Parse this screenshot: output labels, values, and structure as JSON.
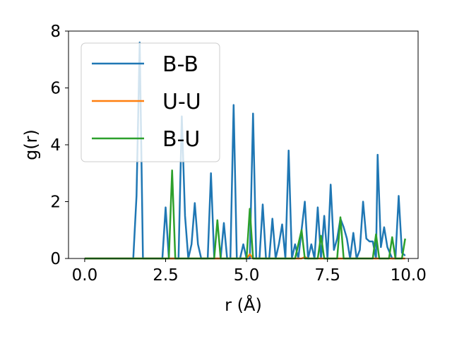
{
  "chart_data": {
    "type": "line",
    "title": "",
    "xlabel": "r (Å)",
    "ylabel": "g(r)",
    "xlim": [
      -0.5,
      10.3
    ],
    "ylim": [
      0,
      8
    ],
    "xticks": [
      0.0,
      2.5,
      5.0,
      7.5,
      10.0
    ],
    "xtick_labels": [
      "0.0",
      "2.5",
      "5.0",
      "7.5",
      "10.0"
    ],
    "yticks": [
      0,
      2,
      4,
      6,
      8
    ],
    "ytick_labels": [
      "0",
      "2",
      "4",
      "6",
      "8"
    ],
    "grid": false,
    "legend_position": "top-left",
    "series": [
      {
        "name": "B-B",
        "color": "#1f77b4",
        "points": [
          [
            0.0,
            0.0
          ],
          [
            1.5,
            0.0
          ],
          [
            1.6,
            2.2
          ],
          [
            1.7,
            7.6
          ],
          [
            1.8,
            0.0
          ],
          [
            2.4,
            0.0
          ],
          [
            2.5,
            1.8
          ],
          [
            2.6,
            0.0
          ],
          [
            2.9,
            0.0
          ],
          [
            3.0,
            5.0
          ],
          [
            3.1,
            1.5
          ],
          [
            3.2,
            0.0
          ],
          [
            3.3,
            0.5
          ],
          [
            3.4,
            1.95
          ],
          [
            3.5,
            0.5
          ],
          [
            3.6,
            0.0
          ],
          [
            3.8,
            0.0
          ],
          [
            3.9,
            3.0
          ],
          [
            4.0,
            0.0
          ],
          [
            4.2,
            0.0
          ],
          [
            4.3,
            1.25
          ],
          [
            4.4,
            0.0
          ],
          [
            4.5,
            0.0
          ],
          [
            4.6,
            5.4
          ],
          [
            4.7,
            0.0
          ],
          [
            4.8,
            0.0
          ],
          [
            4.9,
            0.5
          ],
          [
            5.0,
            0.0
          ],
          [
            5.1,
            0.0
          ],
          [
            5.2,
            5.1
          ],
          [
            5.3,
            0.0
          ],
          [
            5.4,
            0.0
          ],
          [
            5.5,
            1.9
          ],
          [
            5.6,
            0.0
          ],
          [
            5.7,
            0.0
          ],
          [
            5.8,
            1.4
          ],
          [
            5.9,
            0.0
          ],
          [
            6.0,
            0.5
          ],
          [
            6.1,
            1.2
          ],
          [
            6.2,
            0.0
          ],
          [
            6.3,
            3.8
          ],
          [
            6.4,
            0.0
          ],
          [
            6.5,
            0.5
          ],
          [
            6.6,
            0.0
          ],
          [
            6.7,
            1.0
          ],
          [
            6.8,
            2.0
          ],
          [
            6.9,
            0.0
          ],
          [
            7.0,
            0.5
          ],
          [
            7.1,
            0.0
          ],
          [
            7.2,
            1.8
          ],
          [
            7.3,
            0.0
          ],
          [
            7.4,
            1.5
          ],
          [
            7.5,
            0.0
          ],
          [
            7.6,
            2.6
          ],
          [
            7.7,
            0.3
          ],
          [
            7.8,
            0.7
          ],
          [
            7.9,
            1.4
          ],
          [
            8.0,
            1.1
          ],
          [
            8.1,
            0.7
          ],
          [
            8.2,
            0.0
          ],
          [
            8.3,
            0.9
          ],
          [
            8.4,
            0.0
          ],
          [
            8.5,
            0.3
          ],
          [
            8.6,
            2.0
          ],
          [
            8.7,
            0.7
          ],
          [
            8.8,
            0.6
          ],
          [
            8.9,
            0.6
          ],
          [
            9.0,
            0.0
          ],
          [
            9.05,
            3.65
          ],
          [
            9.15,
            0.4
          ],
          [
            9.25,
            1.1
          ],
          [
            9.35,
            0.4
          ],
          [
            9.5,
            0.0
          ],
          [
            9.6,
            0.0
          ],
          [
            9.7,
            2.2
          ],
          [
            9.8,
            0.2
          ],
          [
            9.9,
            0.1
          ]
        ]
      },
      {
        "name": "U-U",
        "color": "#ff7f0e",
        "points": [
          [
            0.0,
            0.0
          ],
          [
            5.0,
            0.0
          ],
          [
            5.1,
            0.15
          ],
          [
            5.2,
            0.0
          ],
          [
            6.7,
            0.0
          ],
          [
            6.8,
            0.05
          ],
          [
            6.9,
            0.0
          ],
          [
            9.9,
            0.0
          ]
        ]
      },
      {
        "name": "B-U",
        "color": "#2ca02c",
        "points": [
          [
            0.0,
            0.0
          ],
          [
            2.6,
            0.0
          ],
          [
            2.7,
            3.1
          ],
          [
            2.8,
            0.0
          ],
          [
            4.0,
            0.0
          ],
          [
            4.1,
            1.35
          ],
          [
            4.2,
            0.0
          ],
          [
            5.0,
            0.0
          ],
          [
            5.1,
            1.75
          ],
          [
            5.2,
            0.0
          ],
          [
            6.5,
            0.0
          ],
          [
            6.6,
            0.5
          ],
          [
            6.7,
            1.0
          ],
          [
            6.8,
            0.0
          ],
          [
            7.2,
            0.0
          ],
          [
            7.3,
            0.8
          ],
          [
            7.4,
            0.0
          ],
          [
            7.8,
            0.0
          ],
          [
            7.9,
            1.45
          ],
          [
            8.0,
            0.0
          ],
          [
            8.9,
            0.0
          ],
          [
            9.0,
            0.85
          ],
          [
            9.1,
            0.0
          ],
          [
            9.4,
            0.0
          ],
          [
            9.5,
            0.75
          ],
          [
            9.6,
            0.0
          ],
          [
            9.8,
            0.0
          ],
          [
            9.9,
            0.7
          ]
        ]
      }
    ]
  }
}
